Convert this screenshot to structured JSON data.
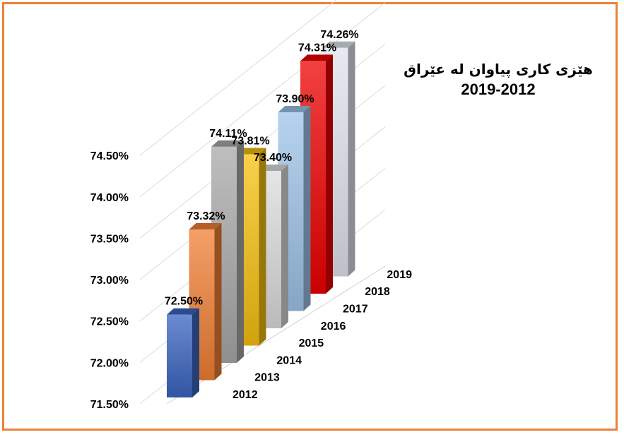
{
  "chart_data": {
    "type": "bar",
    "title_line1": "هێزی کاری پیاوان لە عێراق",
    "title_line2": "2019-2012",
    "categories": [
      "2012",
      "2013",
      "2014",
      "2015",
      "2016",
      "2017",
      "2018",
      "2019"
    ],
    "values": [
      72.5,
      73.32,
      74.11,
      73.81,
      73.4,
      73.9,
      74.31,
      74.26
    ],
    "value_labels": [
      "72.50%",
      "73.32%",
      "74.11%",
      "73.81%",
      "73.40%",
      "73.90%",
      "74.31%",
      "74.26%"
    ],
    "colors": [
      "#3a64c0",
      "#f07f34",
      "#a8a8a8",
      "#f5c010",
      "#dcdcdc",
      "#9ec3e8",
      "#ee0000",
      "#dfe3ec"
    ],
    "y_ticks": [
      "71.50%",
      "72.00%",
      "72.50%",
      "73.00%",
      "73.50%",
      "74.00%",
      "74.50%"
    ],
    "ylim": [
      71.5,
      74.5
    ],
    "projection": "3d-depth",
    "grid": true,
    "legend": "none"
  }
}
